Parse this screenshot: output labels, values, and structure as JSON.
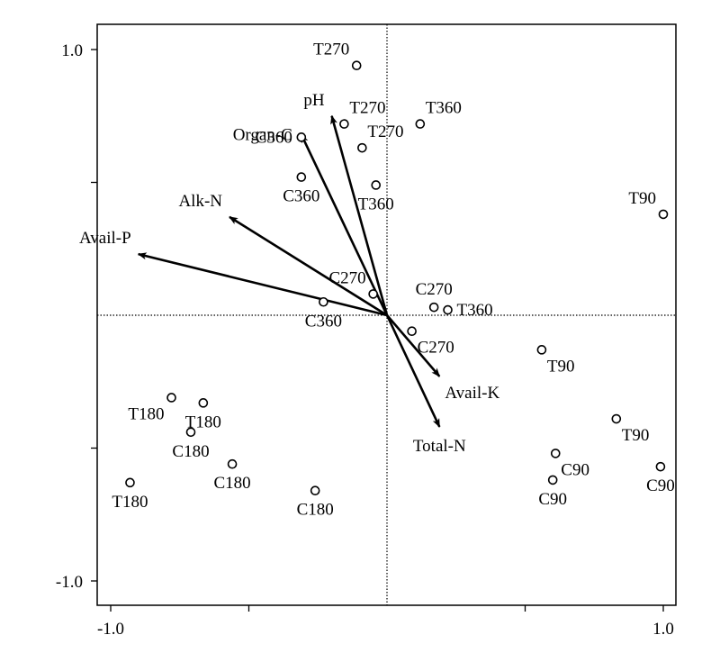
{
  "chart_data": {
    "type": "scatter",
    "xlim": [
      -1.0,
      1.0
    ],
    "ylim": [
      -1.0,
      1.0
    ],
    "x_tick_labels": [
      {
        "value": -1.0,
        "label": "-1.0"
      },
      {
        "value": 1.0,
        "label": "1.0"
      }
    ],
    "y_tick_labels": [
      {
        "value": 1.0,
        "label": "1.0"
      },
      {
        "value": -1.0,
        "label": "-1.0"
      }
    ],
    "minor_tick_values": [
      -0.5,
      0.5
    ],
    "grid": false,
    "zero_lines": true,
    "points": [
      {
        "label": "T270",
        "x": -0.11,
        "y": 0.94,
        "label_pos": "above-left"
      },
      {
        "label": "T270",
        "x": -0.155,
        "y": 0.72,
        "label_pos": "above-right"
      },
      {
        "label": "T270",
        "x": -0.09,
        "y": 0.63,
        "label_pos": "above-right"
      },
      {
        "label": "T360",
        "x": 0.12,
        "y": 0.72,
        "label_pos": "above-right"
      },
      {
        "label": "T360",
        "x": -0.04,
        "y": 0.49,
        "label_pos": "below"
      },
      {
        "label": "C360",
        "x": -0.31,
        "y": 0.67,
        "label_pos": "left"
      },
      {
        "label": "C360",
        "x": -0.31,
        "y": 0.52,
        "label_pos": "below"
      },
      {
        "label": "T90",
        "x": 1.0,
        "y": 0.38,
        "label_pos": "above-left"
      },
      {
        "label": "C270",
        "x": -0.05,
        "y": 0.08,
        "label_pos": "above-left"
      },
      {
        "label": "C360",
        "x": -0.23,
        "y": 0.05,
        "label_pos": "below"
      },
      {
        "label": "C270",
        "x": 0.17,
        "y": 0.03,
        "label_pos": "above"
      },
      {
        "label": "T360",
        "x": 0.22,
        "y": 0.02,
        "label_pos": "right"
      },
      {
        "label": "C270",
        "x": 0.09,
        "y": -0.06,
        "label_pos": "below-right"
      },
      {
        "label": "T90",
        "x": 0.56,
        "y": -0.13,
        "label_pos": "below-right"
      },
      {
        "label": "T90",
        "x": 0.83,
        "y": -0.39,
        "label_pos": "below-right"
      },
      {
        "label": "C90",
        "x": 0.61,
        "y": -0.52,
        "label_pos": "below-right"
      },
      {
        "label": "C90",
        "x": 0.6,
        "y": -0.62,
        "label_pos": "below"
      },
      {
        "label": "C90",
        "x": 0.99,
        "y": -0.57,
        "label_pos": "below"
      },
      {
        "label": "T180",
        "x": -0.78,
        "y": -0.31,
        "label_pos": "below-left"
      },
      {
        "label": "T180",
        "x": -0.665,
        "y": -0.33,
        "label_pos": "below"
      },
      {
        "label": "C180",
        "x": -0.71,
        "y": -0.44,
        "label_pos": "below"
      },
      {
        "label": "C180",
        "x": -0.56,
        "y": -0.56,
        "label_pos": "below"
      },
      {
        "label": "T180",
        "x": -0.93,
        "y": -0.63,
        "label_pos": "below"
      },
      {
        "label": "C180",
        "x": -0.26,
        "y": -0.66,
        "label_pos": "below"
      }
    ],
    "vectors": [
      {
        "label": "pH",
        "x": -0.2,
        "y": 0.75,
        "label_pos": "above-left"
      },
      {
        "label": "Organ-C",
        "x": -0.31,
        "y": 0.68,
        "label_pos": "left"
      },
      {
        "label": "Alk-N",
        "x": -0.57,
        "y": 0.37,
        "label_pos": "above-left"
      },
      {
        "label": "Avail-P",
        "x": -0.9,
        "y": 0.23,
        "label_pos": "above-left"
      },
      {
        "label": "Avail-K",
        "x": 0.19,
        "y": -0.23,
        "label_pos": "below-right"
      },
      {
        "label": "Total-N",
        "x": 0.19,
        "y": -0.42,
        "label_pos": "below"
      }
    ]
  }
}
